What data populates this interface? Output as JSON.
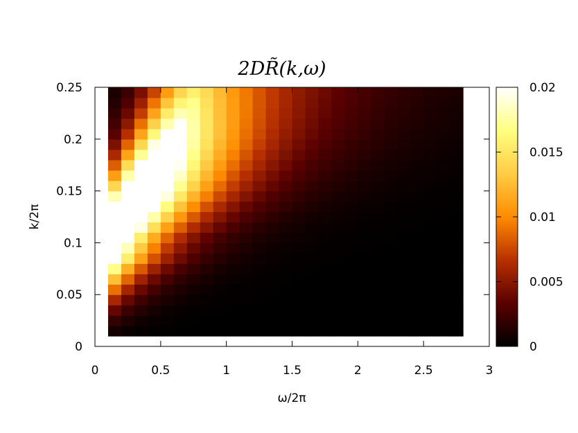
{
  "chart_data": {
    "type": "heatmap",
    "title": "2DR̃(k,ω)",
    "xlabel": "ω/2π",
    "ylabel": "k/2π",
    "xlim": [
      0,
      3
    ],
    "ylim": [
      0,
      0.25
    ],
    "x_ticks": [
      "0",
      "0.5",
      "1",
      "1.5",
      "2",
      "2.5",
      "3"
    ],
    "y_ticks": [
      "0",
      "0.05",
      "0.1",
      "0.15",
      "0.2",
      "0.25"
    ],
    "x_tick_values": [
      0,
      0.5,
      1,
      1.5,
      2,
      2.5,
      3
    ],
    "y_tick_values": [
      0,
      0.05,
      0.1,
      0.15,
      0.2,
      0.25
    ],
    "colorbar": {
      "range": [
        0,
        0.02
      ],
      "ticks": [
        "0",
        "0.005",
        "0.01",
        "0.015",
        "0.02"
      ],
      "tick_values": [
        0,
        0.005,
        0.01,
        0.015,
        0.02
      ],
      "colormap": [
        "#000000",
        "#5a0000",
        "#b83000",
        "#ff8c00",
        "#ffcc44",
        "#ffff80",
        "#ffffff"
      ]
    },
    "data_extent": {
      "omega": [
        0.1,
        2.8
      ],
      "k": [
        0.01,
        0.25
      ]
    },
    "grid": {
      "omega_cells": 27,
      "k_cells": 24
    },
    "ridge": {
      "omega_peak_at_k": [
        [
          0.05,
          0.1
        ],
        [
          0.1,
          0.1
        ],
        [
          0.15,
          0.4
        ],
        [
          0.2,
          0.62
        ],
        [
          0.25,
          0.8
        ]
      ]
    },
    "grid_lines": false,
    "legend": "none"
  }
}
